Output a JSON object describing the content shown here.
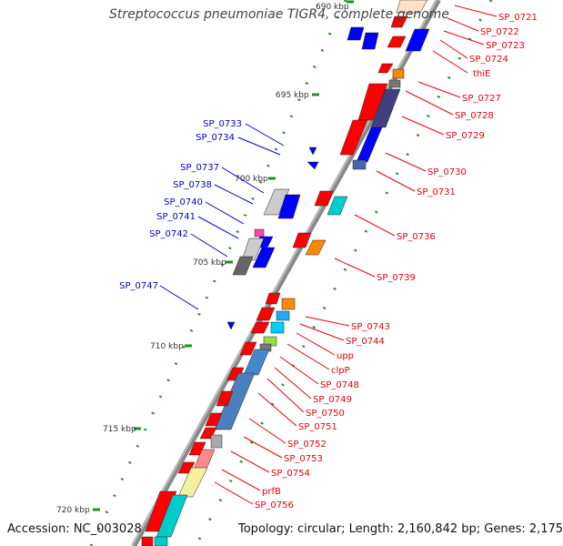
{
  "title": "Streptococcus pneumoniae TIGR4, complete genome",
  "footer": {
    "accession": "Accession: NC_003028",
    "summary": "Topology: circular; Length: 2,160,842 bp; Genes: 2,175"
  },
  "colors": {
    "forward_label": "#e8000a",
    "reverse_label": "#0000cc",
    "backbone": "#888888",
    "tick": "#2a8a2a"
  },
  "scale_labels": [
    "690 kbp",
    "695 kbp",
    "700 kbp",
    "705 kbp",
    "710 kbp",
    "715 kbp",
    "720 kbp"
  ],
  "right_labels": [
    "SP_0721",
    "SP_0722",
    "SP_0723",
    "SP_0724",
    "thiE",
    "SP_0727",
    "SP_0728",
    "SP_0729",
    "SP_0730",
    "SP_0731",
    "SP_0736",
    "SP_0739",
    "SP_0743",
    "SP_0744",
    "upp",
    "clpP",
    "SP_0748",
    "SP_0749",
    "SP_0750",
    "SP_0751",
    "SP_0752",
    "SP_0753",
    "SP_0754",
    "prfB",
    "SP_0756"
  ],
  "left_labels": [
    "SP_0733",
    "SP_0734",
    "SP_0737",
    "SP_0738",
    "SP_0740",
    "SP_0741",
    "SP_0742",
    "SP_0747"
  ]
}
